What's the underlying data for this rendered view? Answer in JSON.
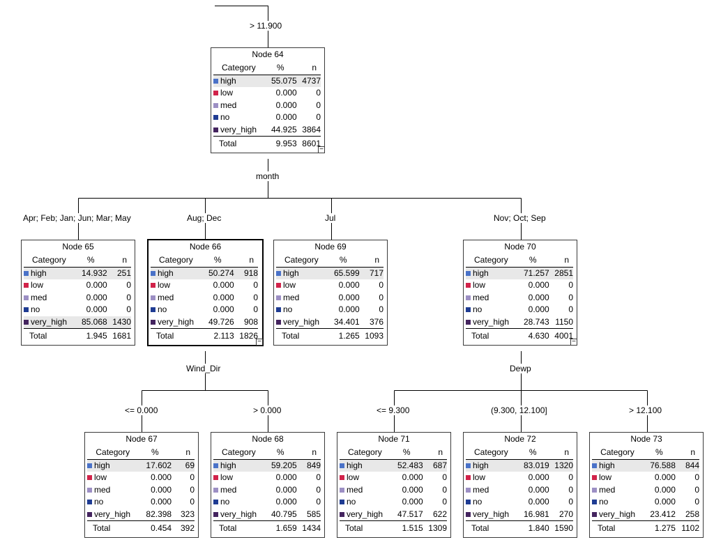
{
  "colors": {
    "high": "#4a72c8",
    "low": "#d1234a",
    "med": "#9c8fc4",
    "no": "#1f3c93",
    "very_high": "#44245f"
  },
  "headers": {
    "category": "Category",
    "percent": "%",
    "n": "n"
  },
  "root_branch_label": "> 11.900",
  "split_labels": {
    "node64": "month",
    "node66": "Wind_Dir",
    "node70": "Dewp"
  },
  "branch_labels": {
    "node65": "Apr; Feb; Jan; Jun; Mar; May",
    "node66": "Aug; Dec",
    "node69": "Jul",
    "node70": "Nov; Oct; Sep",
    "node67": "<= 0.000",
    "node68": "> 0.000",
    "node71": "<= 9.300",
    "node72": "(9.300, 12.100]",
    "node73": "> 12.100"
  },
  "nodes": {
    "node64": {
      "title": "Node 64",
      "rows": [
        {
          "cat": "high",
          "pct": "55.075",
          "n": "4737"
        },
        {
          "cat": "low",
          "pct": "0.000",
          "n": "0"
        },
        {
          "cat": "med",
          "pct": "0.000",
          "n": "0"
        },
        {
          "cat": "no",
          "pct": "0.000",
          "n": "0"
        },
        {
          "cat": "very_high",
          "pct": "44.925",
          "n": "3864"
        }
      ],
      "total": {
        "label": "Total",
        "pct": "9.953",
        "n": "8601"
      },
      "toggle": "−"
    },
    "node65": {
      "title": "Node 65",
      "rows": [
        {
          "cat": "high",
          "pct": "14.932",
          "n": "251"
        },
        {
          "cat": "low",
          "pct": "0.000",
          "n": "0"
        },
        {
          "cat": "med",
          "pct": "0.000",
          "n": "0"
        },
        {
          "cat": "no",
          "pct": "0.000",
          "n": "0"
        },
        {
          "cat": "very_high",
          "pct": "85.068",
          "n": "1430"
        }
      ],
      "total": {
        "label": "Total",
        "pct": "1.945",
        "n": "1681"
      }
    },
    "node66": {
      "title": "Node 66",
      "rows": [
        {
          "cat": "high",
          "pct": "50.274",
          "n": "918"
        },
        {
          "cat": "low",
          "pct": "0.000",
          "n": "0"
        },
        {
          "cat": "med",
          "pct": "0.000",
          "n": "0"
        },
        {
          "cat": "no",
          "pct": "0.000",
          "n": "0"
        },
        {
          "cat": "very_high",
          "pct": "49.726",
          "n": "908"
        }
      ],
      "total": {
        "label": "Total",
        "pct": "2.113",
        "n": "1826"
      },
      "toggle": "−"
    },
    "node69": {
      "title": "Node 69",
      "rows": [
        {
          "cat": "high",
          "pct": "65.599",
          "n": "717"
        },
        {
          "cat": "low",
          "pct": "0.000",
          "n": "0"
        },
        {
          "cat": "med",
          "pct": "0.000",
          "n": "0"
        },
        {
          "cat": "no",
          "pct": "0.000",
          "n": "0"
        },
        {
          "cat": "very_high",
          "pct": "34.401",
          "n": "376"
        }
      ],
      "total": {
        "label": "Total",
        "pct": "1.265",
        "n": "1093"
      }
    },
    "node70": {
      "title": "Node 70",
      "rows": [
        {
          "cat": "high",
          "pct": "71.257",
          "n": "2851"
        },
        {
          "cat": "low",
          "pct": "0.000",
          "n": "0"
        },
        {
          "cat": "med",
          "pct": "0.000",
          "n": "0"
        },
        {
          "cat": "no",
          "pct": "0.000",
          "n": "0"
        },
        {
          "cat": "very_high",
          "pct": "28.743",
          "n": "1150"
        }
      ],
      "total": {
        "label": "Total",
        "pct": "4.630",
        "n": "4001"
      },
      "toggle": "−"
    },
    "node67": {
      "title": "Node 67",
      "rows": [
        {
          "cat": "high",
          "pct": "17.602",
          "n": "69"
        },
        {
          "cat": "low",
          "pct": "0.000",
          "n": "0"
        },
        {
          "cat": "med",
          "pct": "0.000",
          "n": "0"
        },
        {
          "cat": "no",
          "pct": "0.000",
          "n": "0"
        },
        {
          "cat": "very_high",
          "pct": "82.398",
          "n": "323"
        }
      ],
      "total": {
        "label": "Total",
        "pct": "0.454",
        "n": "392"
      }
    },
    "node68": {
      "title": "Node 68",
      "rows": [
        {
          "cat": "high",
          "pct": "59.205",
          "n": "849"
        },
        {
          "cat": "low",
          "pct": "0.000",
          "n": "0"
        },
        {
          "cat": "med",
          "pct": "0.000",
          "n": "0"
        },
        {
          "cat": "no",
          "pct": "0.000",
          "n": "0"
        },
        {
          "cat": "very_high",
          "pct": "40.795",
          "n": "585"
        }
      ],
      "total": {
        "label": "Total",
        "pct": "1.659",
        "n": "1434"
      }
    },
    "node71": {
      "title": "Node 71",
      "rows": [
        {
          "cat": "high",
          "pct": "52.483",
          "n": "687"
        },
        {
          "cat": "low",
          "pct": "0.000",
          "n": "0"
        },
        {
          "cat": "med",
          "pct": "0.000",
          "n": "0"
        },
        {
          "cat": "no",
          "pct": "0.000",
          "n": "0"
        },
        {
          "cat": "very_high",
          "pct": "47.517",
          "n": "622"
        }
      ],
      "total": {
        "label": "Total",
        "pct": "1.515",
        "n": "1309"
      }
    },
    "node72": {
      "title": "Node 72",
      "rows": [
        {
          "cat": "high",
          "pct": "83.019",
          "n": "1320"
        },
        {
          "cat": "low",
          "pct": "0.000",
          "n": "0"
        },
        {
          "cat": "med",
          "pct": "0.000",
          "n": "0"
        },
        {
          "cat": "no",
          "pct": "0.000",
          "n": "0"
        },
        {
          "cat": "very_high",
          "pct": "16.981",
          "n": "270"
        }
      ],
      "total": {
        "label": "Total",
        "pct": "1.840",
        "n": "1590"
      }
    },
    "node73": {
      "title": "Node 73",
      "rows": [
        {
          "cat": "high",
          "pct": "76.588",
          "n": "844"
        },
        {
          "cat": "low",
          "pct": "0.000",
          "n": "0"
        },
        {
          "cat": "med",
          "pct": "0.000",
          "n": "0"
        },
        {
          "cat": "no",
          "pct": "0.000",
          "n": "0"
        },
        {
          "cat": "very_high",
          "pct": "23.412",
          "n": "258"
        }
      ],
      "total": {
        "label": "Total",
        "pct": "1.275",
        "n": "1102"
      }
    }
  }
}
